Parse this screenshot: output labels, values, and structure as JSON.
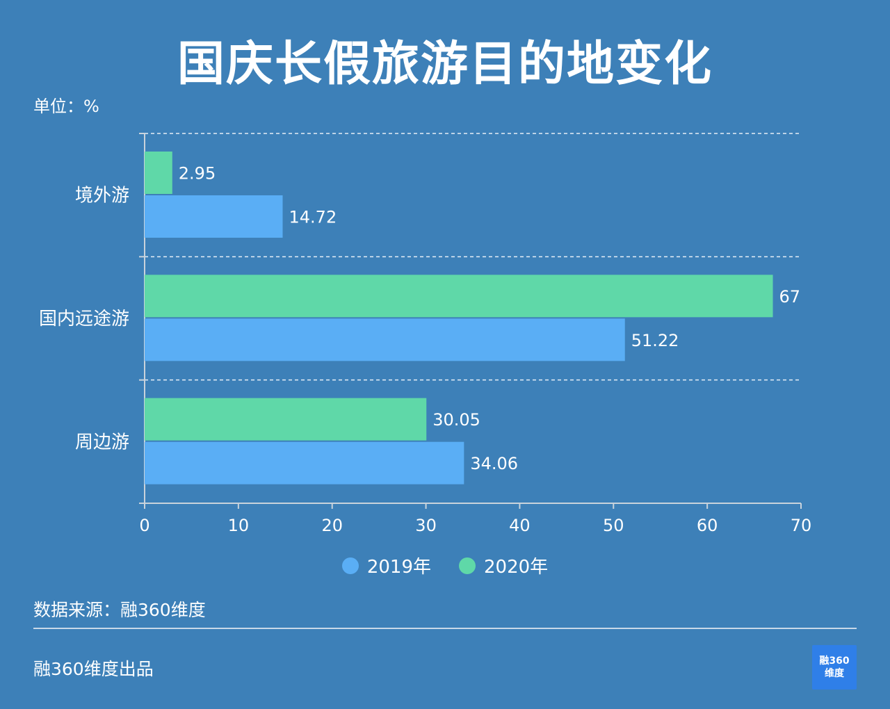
{
  "title": "国庆长假旅游目的地变化",
  "unit_label": "单位：%",
  "source_label": "数据来源：融360维度",
  "footer_label": "融360维度出品",
  "logo": {
    "line1": "融360",
    "line2": "维度"
  },
  "colors": {
    "background": "#3d80b8",
    "s2019": "#5aaef5",
    "s2020": "#5fd8a8"
  },
  "chart_data": {
    "type": "bar",
    "orientation": "horizontal",
    "categories": [
      "境外游",
      "国内远途游",
      "周边游"
    ],
    "series": [
      {
        "name": "2020年",
        "values": [
          2.95,
          67,
          30.05
        ]
      },
      {
        "name": "2019年",
        "values": [
          14.72,
          51.22,
          34.06
        ]
      }
    ],
    "value_labels": {
      "2020年": [
        "2.95",
        "67",
        "30.05"
      ],
      "2019年": [
        "14.72",
        "51.22",
        "34.06"
      ]
    },
    "xlim": [
      0,
      70
    ],
    "xticks": [
      0,
      10,
      20,
      30,
      40,
      50,
      60,
      70
    ],
    "grid": "dashed horizontal separators",
    "legend": {
      "position": "bottom",
      "entries": [
        "2019年",
        "2020年"
      ]
    }
  }
}
